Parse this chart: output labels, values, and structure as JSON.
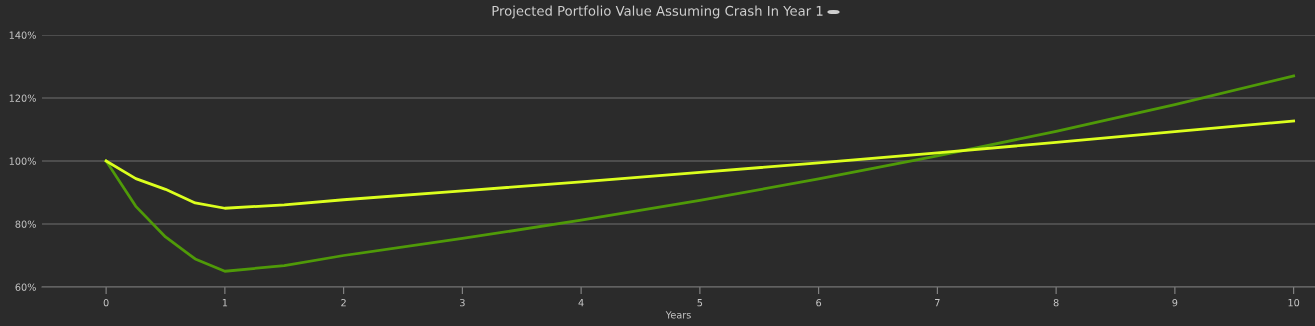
{
  "chart_data": {
    "type": "line",
    "title": "Projected Portfolio Value Assuming Crash In Year 1",
    "xlabel": "Years",
    "x": [
      0,
      0.25,
      0.5,
      0.75,
      1,
      1.5,
      2,
      3,
      4,
      5,
      6,
      7,
      8,
      9,
      10
    ],
    "series": [
      {
        "color": "#4f9a08",
        "values": [
          100,
          85.6,
          75.9,
          68.9,
          65,
          66.8,
          70,
          75.4,
          81.2,
          87.5,
          94.3,
          101.6,
          109.4,
          117.9,
          127
        ]
      },
      {
        "color": "#dcff1e",
        "values": [
          100,
          94.4,
          91,
          86.7,
          85,
          86.1,
          87.7,
          90.5,
          93.4,
          96.4,
          99.4,
          102.6,
          105.9,
          109.3,
          112.7
        ]
      }
    ],
    "xlim": [
      -0.54,
      10.18
    ],
    "xticks": [
      0,
      1,
      2,
      3,
      4,
      5,
      6,
      7,
      8,
      9,
      10
    ],
    "ylim": [
      60,
      140
    ],
    "yticks": [
      {
        "value": 60,
        "label": "60%"
      },
      {
        "value": 80,
        "label": "80%"
      },
      {
        "value": 100,
        "label": "100%"
      },
      {
        "value": 120,
        "label": "120%"
      },
      {
        "value": 140,
        "label": "140%"
      }
    ],
    "grid": "y",
    "marker": "none",
    "line_style": "solid"
  }
}
